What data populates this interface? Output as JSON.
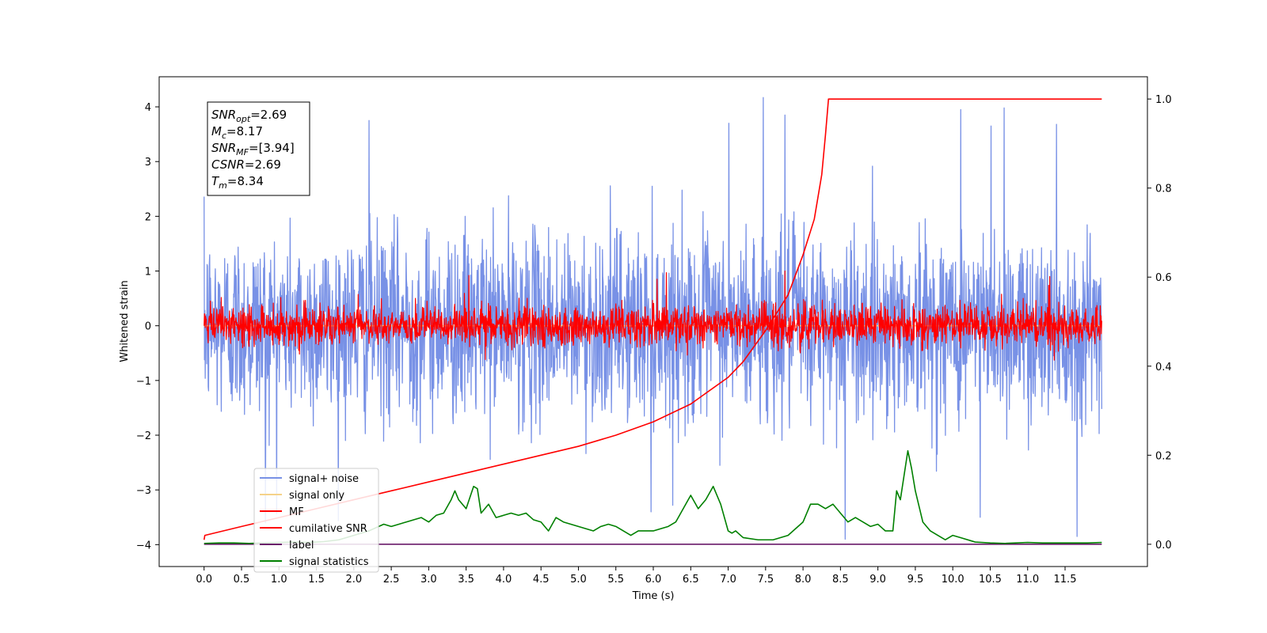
{
  "chart_data": {
    "type": "line",
    "xlabel": "Time (s)",
    "ylabel": "Whitened strain",
    "xlim": [
      -0.6,
      12.6
    ],
    "ylim": [
      -4.4,
      4.55
    ],
    "ylim_right": [
      -0.05,
      1.05
    ],
    "x_ticks": [
      0.0,
      0.5,
      1.0,
      1.5,
      2.0,
      2.5,
      3.0,
      3.5,
      4.0,
      4.5,
      5.0,
      5.5,
      6.0,
      6.5,
      7.0,
      7.5,
      8.0,
      8.5,
      9.0,
      9.5,
      10.0,
      10.5,
      11.0,
      11.5
    ],
    "x_tick_labels": [
      "0.0",
      "0.5",
      "1.0",
      "1.5",
      "2.0",
      "2.5",
      "3.0",
      "3.5",
      "4.0",
      "4.5",
      "5.0",
      "5.5",
      "6.0",
      "6.5",
      "7.0",
      "7.5",
      "8.0",
      "8.5",
      "9.0",
      "9.5",
      "10.0",
      "10.5",
      "11.0",
      "11.5"
    ],
    "y_ticks": [
      -4,
      -3,
      -2,
      -1,
      0,
      1,
      2,
      3,
      4
    ],
    "y_tick_labels": [
      "−4",
      "−3",
      "−2",
      "−1",
      "0",
      "1",
      "2",
      "3",
      "4"
    ],
    "y_right_ticks": [
      0.0,
      0.2,
      0.4,
      0.6,
      0.8,
      1.0
    ],
    "y_right_tick_labels": [
      "0.0",
      "0.2",
      "0.4",
      "0.6",
      "0.8",
      "1.0"
    ],
    "grid": false,
    "legend_position": "lower-left",
    "series": [
      {
        "name": "signal+ noise",
        "color": "#7891e6",
        "axis": "left",
        "kind": "noise",
        "t_range": [
          0,
          11.99
        ],
        "noise_std": 0.85,
        "peak_values": [
          4.17,
          3.98,
          3.95,
          3.85,
          3.75,
          3.7,
          3.68,
          3.65
        ],
        "trough_values": [
          -3.9,
          -3.85,
          -3.6,
          -3.5,
          -3.4
        ]
      },
      {
        "name": "signal only",
        "color": "#f5d28a",
        "axis": "left",
        "kind": "flat",
        "x": [
          0,
          11.99
        ],
        "y": [
          0,
          0
        ]
      },
      {
        "name": "MF",
        "color": "#ff0000",
        "axis": "left",
        "kind": "noise",
        "t_range": [
          0,
          11.99
        ],
        "noise_std": 0.18,
        "peak_values": [
          1.0,
          0.97,
          0.92,
          0.9,
          0.85
        ],
        "trough_values": [
          -0.45,
          -0.42
        ]
      },
      {
        "name": "cumilative SNR",
        "color": "#ff0000",
        "axis": "right",
        "kind": "line",
        "x": [
          0,
          0.01,
          0.5,
          1.0,
          1.5,
          2.0,
          2.5,
          3.0,
          3.5,
          4.0,
          4.5,
          5.0,
          5.5,
          6.0,
          6.5,
          7.0,
          7.2,
          7.5,
          7.8,
          8.0,
          8.15,
          8.25,
          8.3,
          8.34,
          11.99
        ],
        "y": [
          0.01,
          0.02,
          0.04,
          0.06,
          0.08,
          0.1,
          0.12,
          0.14,
          0.16,
          0.18,
          0.2,
          0.22,
          0.245,
          0.275,
          0.315,
          0.375,
          0.41,
          0.48,
          0.56,
          0.65,
          0.73,
          0.83,
          0.92,
          1.0,
          1.0
        ]
      },
      {
        "name": "label",
        "color": "#6a1b6a",
        "axis": "right",
        "kind": "line",
        "x": [
          0,
          11.99
        ],
        "y": [
          0.0,
          0.0
        ]
      },
      {
        "name": "signal statistics",
        "color": "#008000",
        "axis": "right",
        "kind": "line",
        "x": [
          0.0,
          0.2,
          0.4,
          0.6,
          0.8,
          1.0,
          1.2,
          1.4,
          1.6,
          1.8,
          2.0,
          2.2,
          2.4,
          2.5,
          2.7,
          2.9,
          3.0,
          3.1,
          3.2,
          3.3,
          3.35,
          3.4,
          3.5,
          3.6,
          3.65,
          3.7,
          3.8,
          3.9,
          4.0,
          4.1,
          4.2,
          4.3,
          4.4,
          4.5,
          4.6,
          4.7,
          4.8,
          5.0,
          5.2,
          5.3,
          5.4,
          5.5,
          5.7,
          5.8,
          6.0,
          6.2,
          6.3,
          6.5,
          6.6,
          6.7,
          6.8,
          6.9,
          7.0,
          7.05,
          7.1,
          7.2,
          7.4,
          7.6,
          7.8,
          8.0,
          8.1,
          8.2,
          8.3,
          8.4,
          8.5,
          8.6,
          8.7,
          8.8,
          8.9,
          9.0,
          9.1,
          9.2,
          9.25,
          9.3,
          9.4,
          9.45,
          9.5,
          9.6,
          9.7,
          9.8,
          9.9,
          10.0,
          10.1,
          10.3,
          10.5,
          10.7,
          11.0,
          11.2,
          11.5,
          11.8,
          11.99
        ],
        "y": [
          0.002,
          0.003,
          0.003,
          0.002,
          0.003,
          0.004,
          0.005,
          0.004,
          0.006,
          0.01,
          0.02,
          0.03,
          0.045,
          0.04,
          0.05,
          0.06,
          0.05,
          0.065,
          0.07,
          0.1,
          0.12,
          0.1,
          0.08,
          0.13,
          0.125,
          0.07,
          0.09,
          0.06,
          0.065,
          0.07,
          0.065,
          0.07,
          0.055,
          0.05,
          0.03,
          0.06,
          0.05,
          0.04,
          0.03,
          0.04,
          0.045,
          0.04,
          0.02,
          0.03,
          0.03,
          0.04,
          0.05,
          0.11,
          0.08,
          0.1,
          0.13,
          0.09,
          0.03,
          0.025,
          0.03,
          0.015,
          0.01,
          0.01,
          0.02,
          0.05,
          0.09,
          0.09,
          0.08,
          0.09,
          0.07,
          0.05,
          0.06,
          0.05,
          0.04,
          0.045,
          0.03,
          0.03,
          0.12,
          0.1,
          0.21,
          0.17,
          0.12,
          0.05,
          0.03,
          0.02,
          0.01,
          0.02,
          0.015,
          0.005,
          0.003,
          0.002,
          0.004,
          0.003,
          0.003,
          0.003,
          0.004
        ]
      }
    ],
    "annotation_lines": [
      {
        "var": "SNR",
        "sub": "opt",
        "value": "=2.69"
      },
      {
        "var": "M",
        "sub": "c",
        "value": "=8.17"
      },
      {
        "var": "SNR",
        "sub": "MF",
        "value": "=[3.94]"
      },
      {
        "var": "CSNR",
        "sub": "",
        "value": "=2.69"
      },
      {
        "var": "T",
        "sub": "m",
        "value": "=8.34"
      }
    ]
  }
}
